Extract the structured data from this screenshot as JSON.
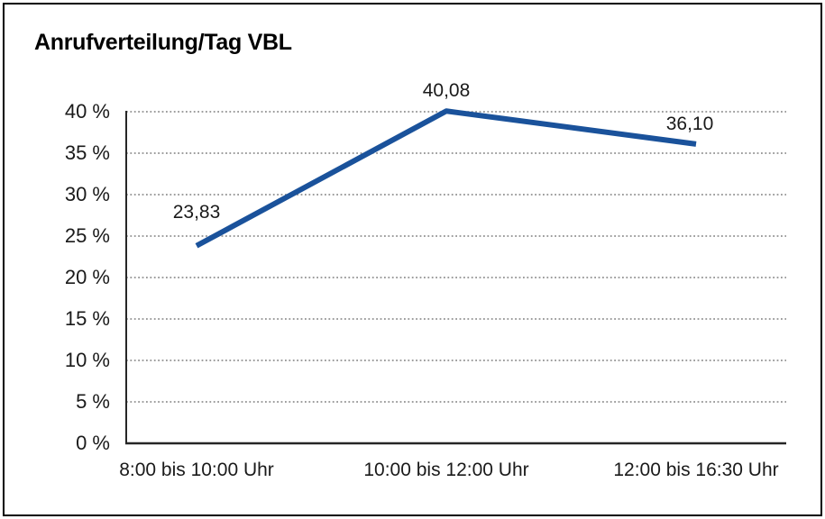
{
  "chart_data": {
    "type": "line",
    "title": "Anrufverteilung/Tag VBL",
    "categories": [
      "8:00 bis 10:00 Uhr",
      "10:00 bis 12:00 Uhr",
      "12:00 bis 16:30 Uhr"
    ],
    "values": [
      23.83,
      40.08,
      36.1
    ],
    "point_labels": [
      "23,83",
      "40,08",
      "36,10"
    ],
    "xlabel": "",
    "ylabel": "",
    "ylim": [
      0,
      40
    ],
    "y_tick_step": 5,
    "y_tick_labels": [
      "0 %",
      "5 %",
      "10 %",
      "15 %",
      "20 %",
      "25 %",
      "30 %",
      "35 %",
      "40 %"
    ],
    "grid": "horizontal-dotted",
    "legend": "none",
    "line_color": "#1A529B",
    "axis_color": "#262626",
    "gridline_color": "#7f7f7f",
    "text_color": "#1a1a1a",
    "background_color": "#ffffff",
    "border_color": "#000000"
  }
}
